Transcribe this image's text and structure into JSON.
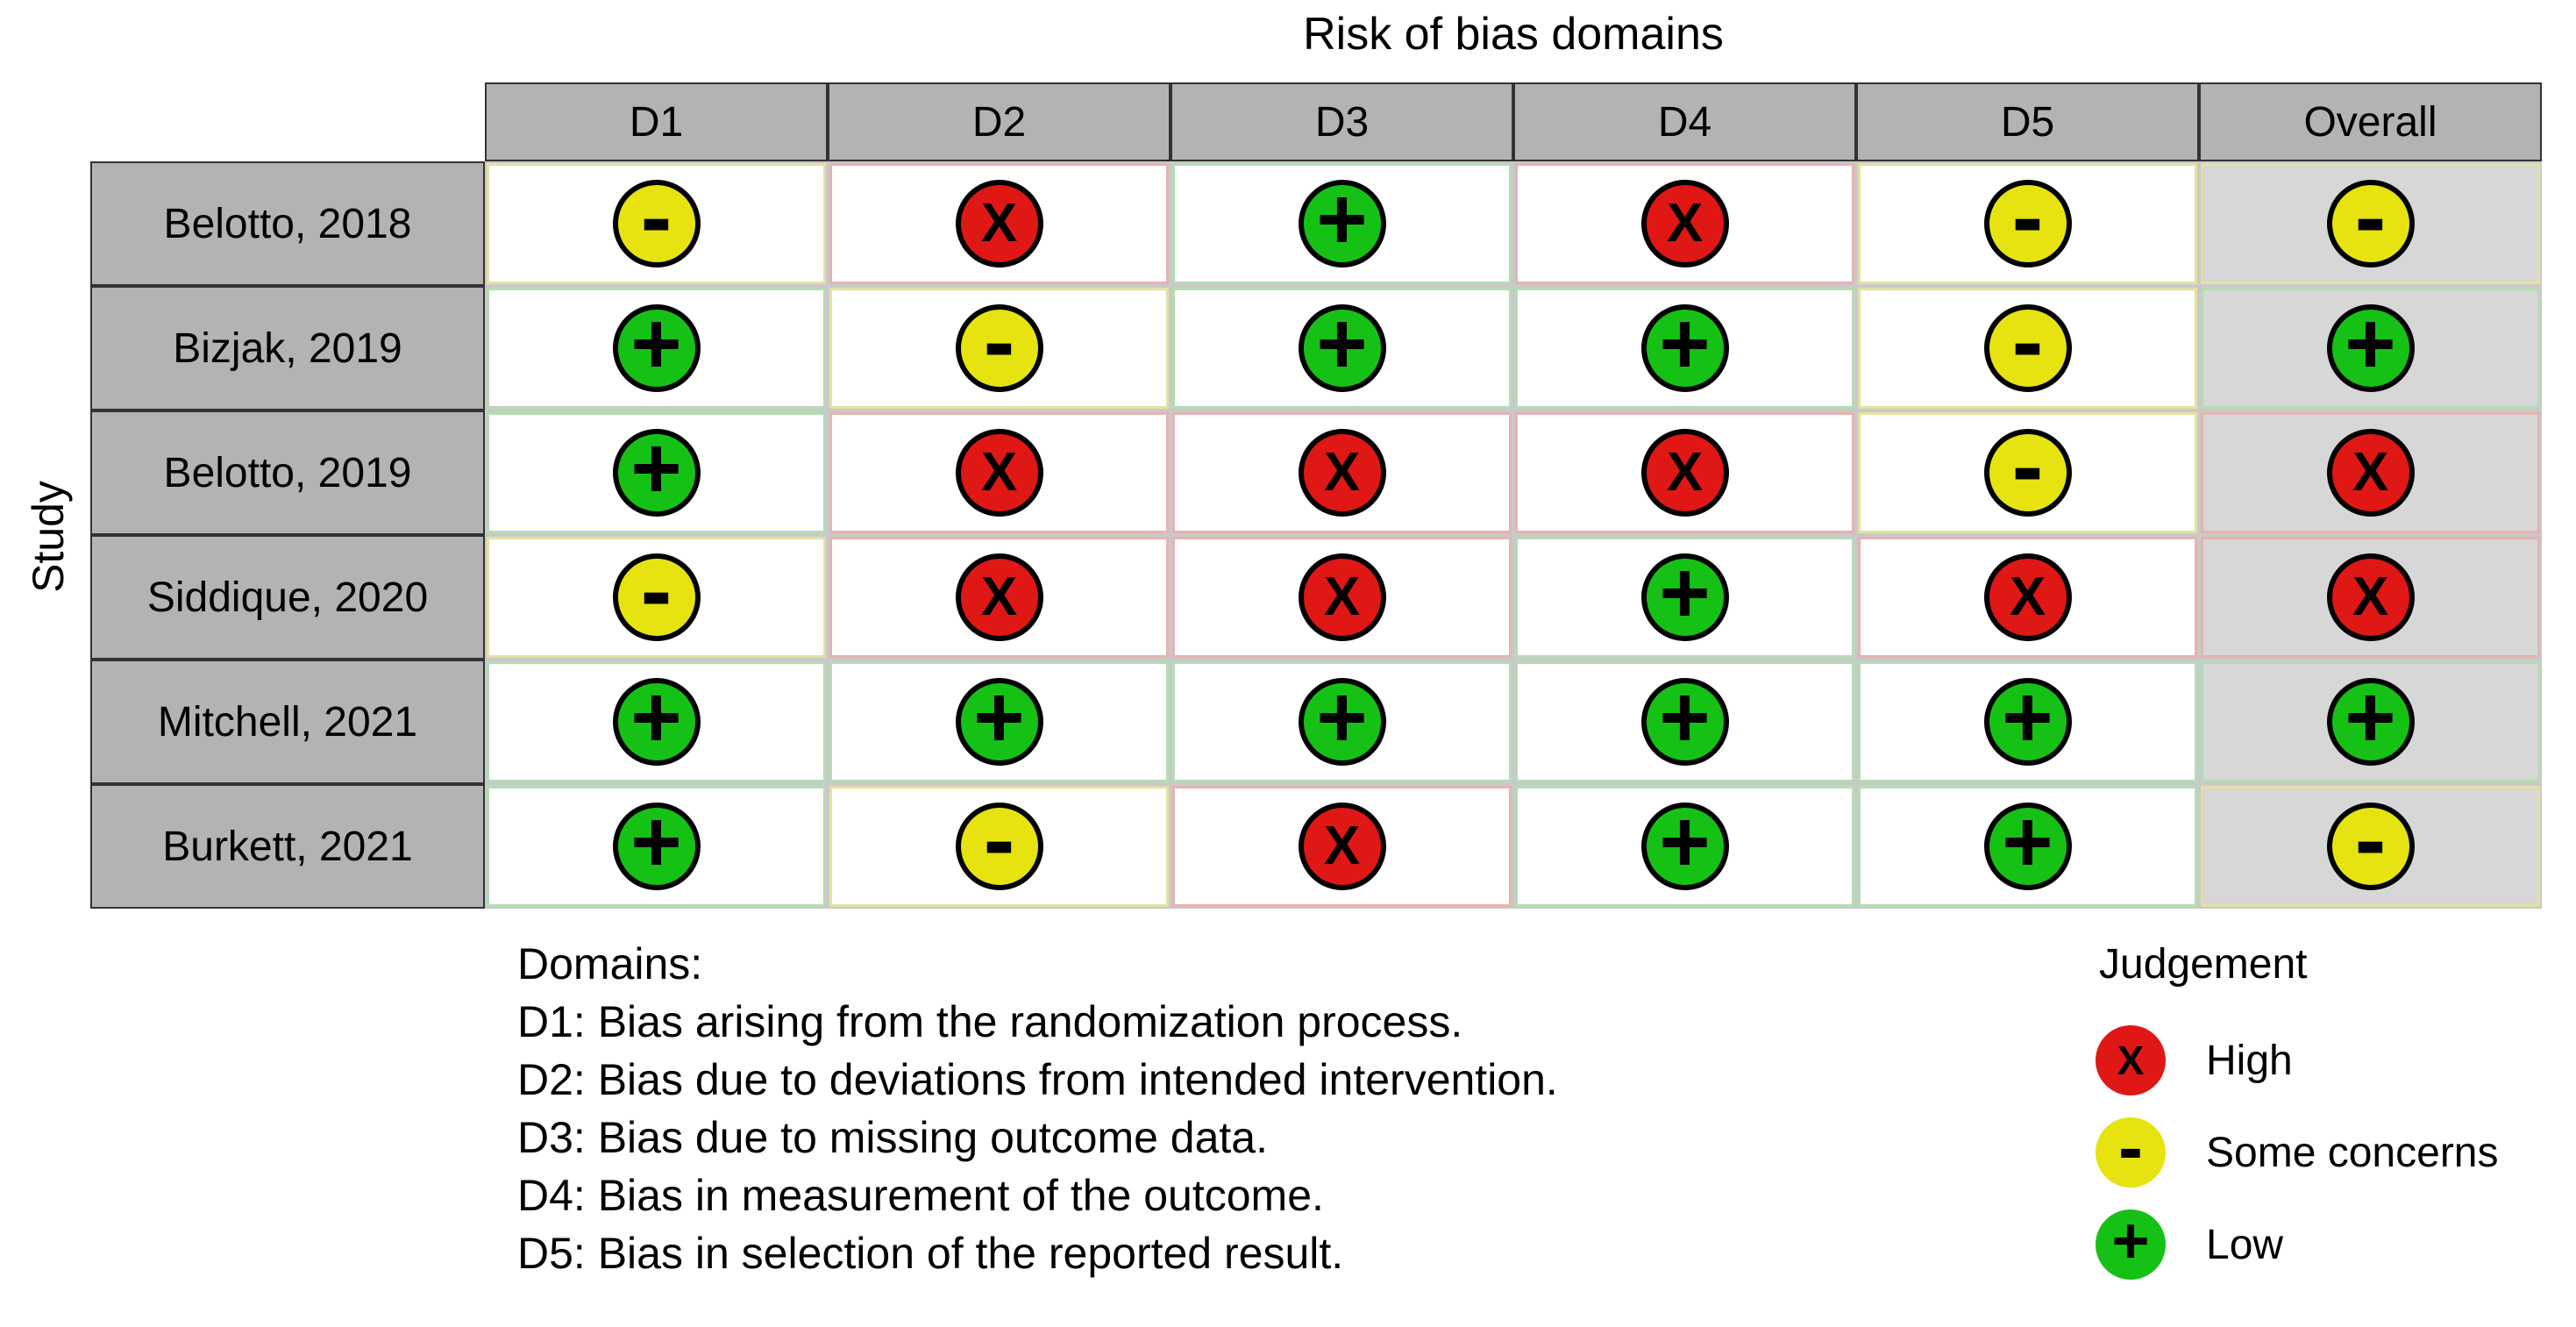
{
  "chart_data": {
    "type": "heatmap",
    "title": "Risk of bias domains",
    "y_label": "Study",
    "columns": [
      "D1",
      "D2",
      "D3",
      "D4",
      "D5",
      "Overall"
    ],
    "studies": [
      "Belotto, 2018",
      "Bizjak, 2019",
      "Belotto, 2019",
      "Siddique, 2020",
      "Mitchell, 2021",
      "Burkett, 2021"
    ],
    "values": [
      [
        "Some concerns",
        "High",
        "Low",
        "High",
        "Some concerns",
        "Some concerns"
      ],
      [
        "Low",
        "Some concerns",
        "Low",
        "Low",
        "Some concerns",
        "Low"
      ],
      [
        "Low",
        "High",
        "High",
        "High",
        "Some concerns",
        "High"
      ],
      [
        "Some concerns",
        "High",
        "High",
        "Low",
        "High",
        "High"
      ],
      [
        "Low",
        "Low",
        "Low",
        "Low",
        "Low",
        "Low"
      ],
      [
        "Low",
        "Some concerns",
        "High",
        "Low",
        "Low",
        "Some concerns"
      ]
    ],
    "legend_position": "bottom-right",
    "grid": true
  },
  "judgements": {
    "High": {
      "css": "high",
      "symbol": "X",
      "color": "#df1715",
      "tint": "#e6b3b0",
      "label": "High"
    },
    "Some concerns": {
      "css": "some",
      "symbol": "-",
      "color": "#e6e311",
      "tint": "#e3e2a0",
      "label": "Some concerns"
    },
    "Low": {
      "css": "low",
      "symbol": "+",
      "color": "#16c116",
      "tint": "#b3ddb3",
      "label": "Low"
    }
  },
  "legend": {
    "title": "Judgement",
    "items": [
      {
        "judgement": "High",
        "label": "High"
      },
      {
        "judgement": "Some concerns",
        "label": "Some concerns"
      },
      {
        "judgement": "Low",
        "label": "Low"
      }
    ]
  },
  "domains_note": {
    "heading": "Domains:",
    "lines": [
      "D1: Bias arising from the randomization process.",
      "D2: Bias due to deviations from intended intervention.",
      "D3: Bias due to missing outcome data.",
      "D4: Bias in measurement of the outcome.",
      "D5: Bias in selection of the reported result."
    ]
  },
  "colors": {
    "header_bg": "#b3b3b3",
    "overall_bg": "#d7d7d7",
    "dark_border": "#333333",
    "grid_border": "#c9c9c9",
    "circle_ring": "#000000"
  }
}
